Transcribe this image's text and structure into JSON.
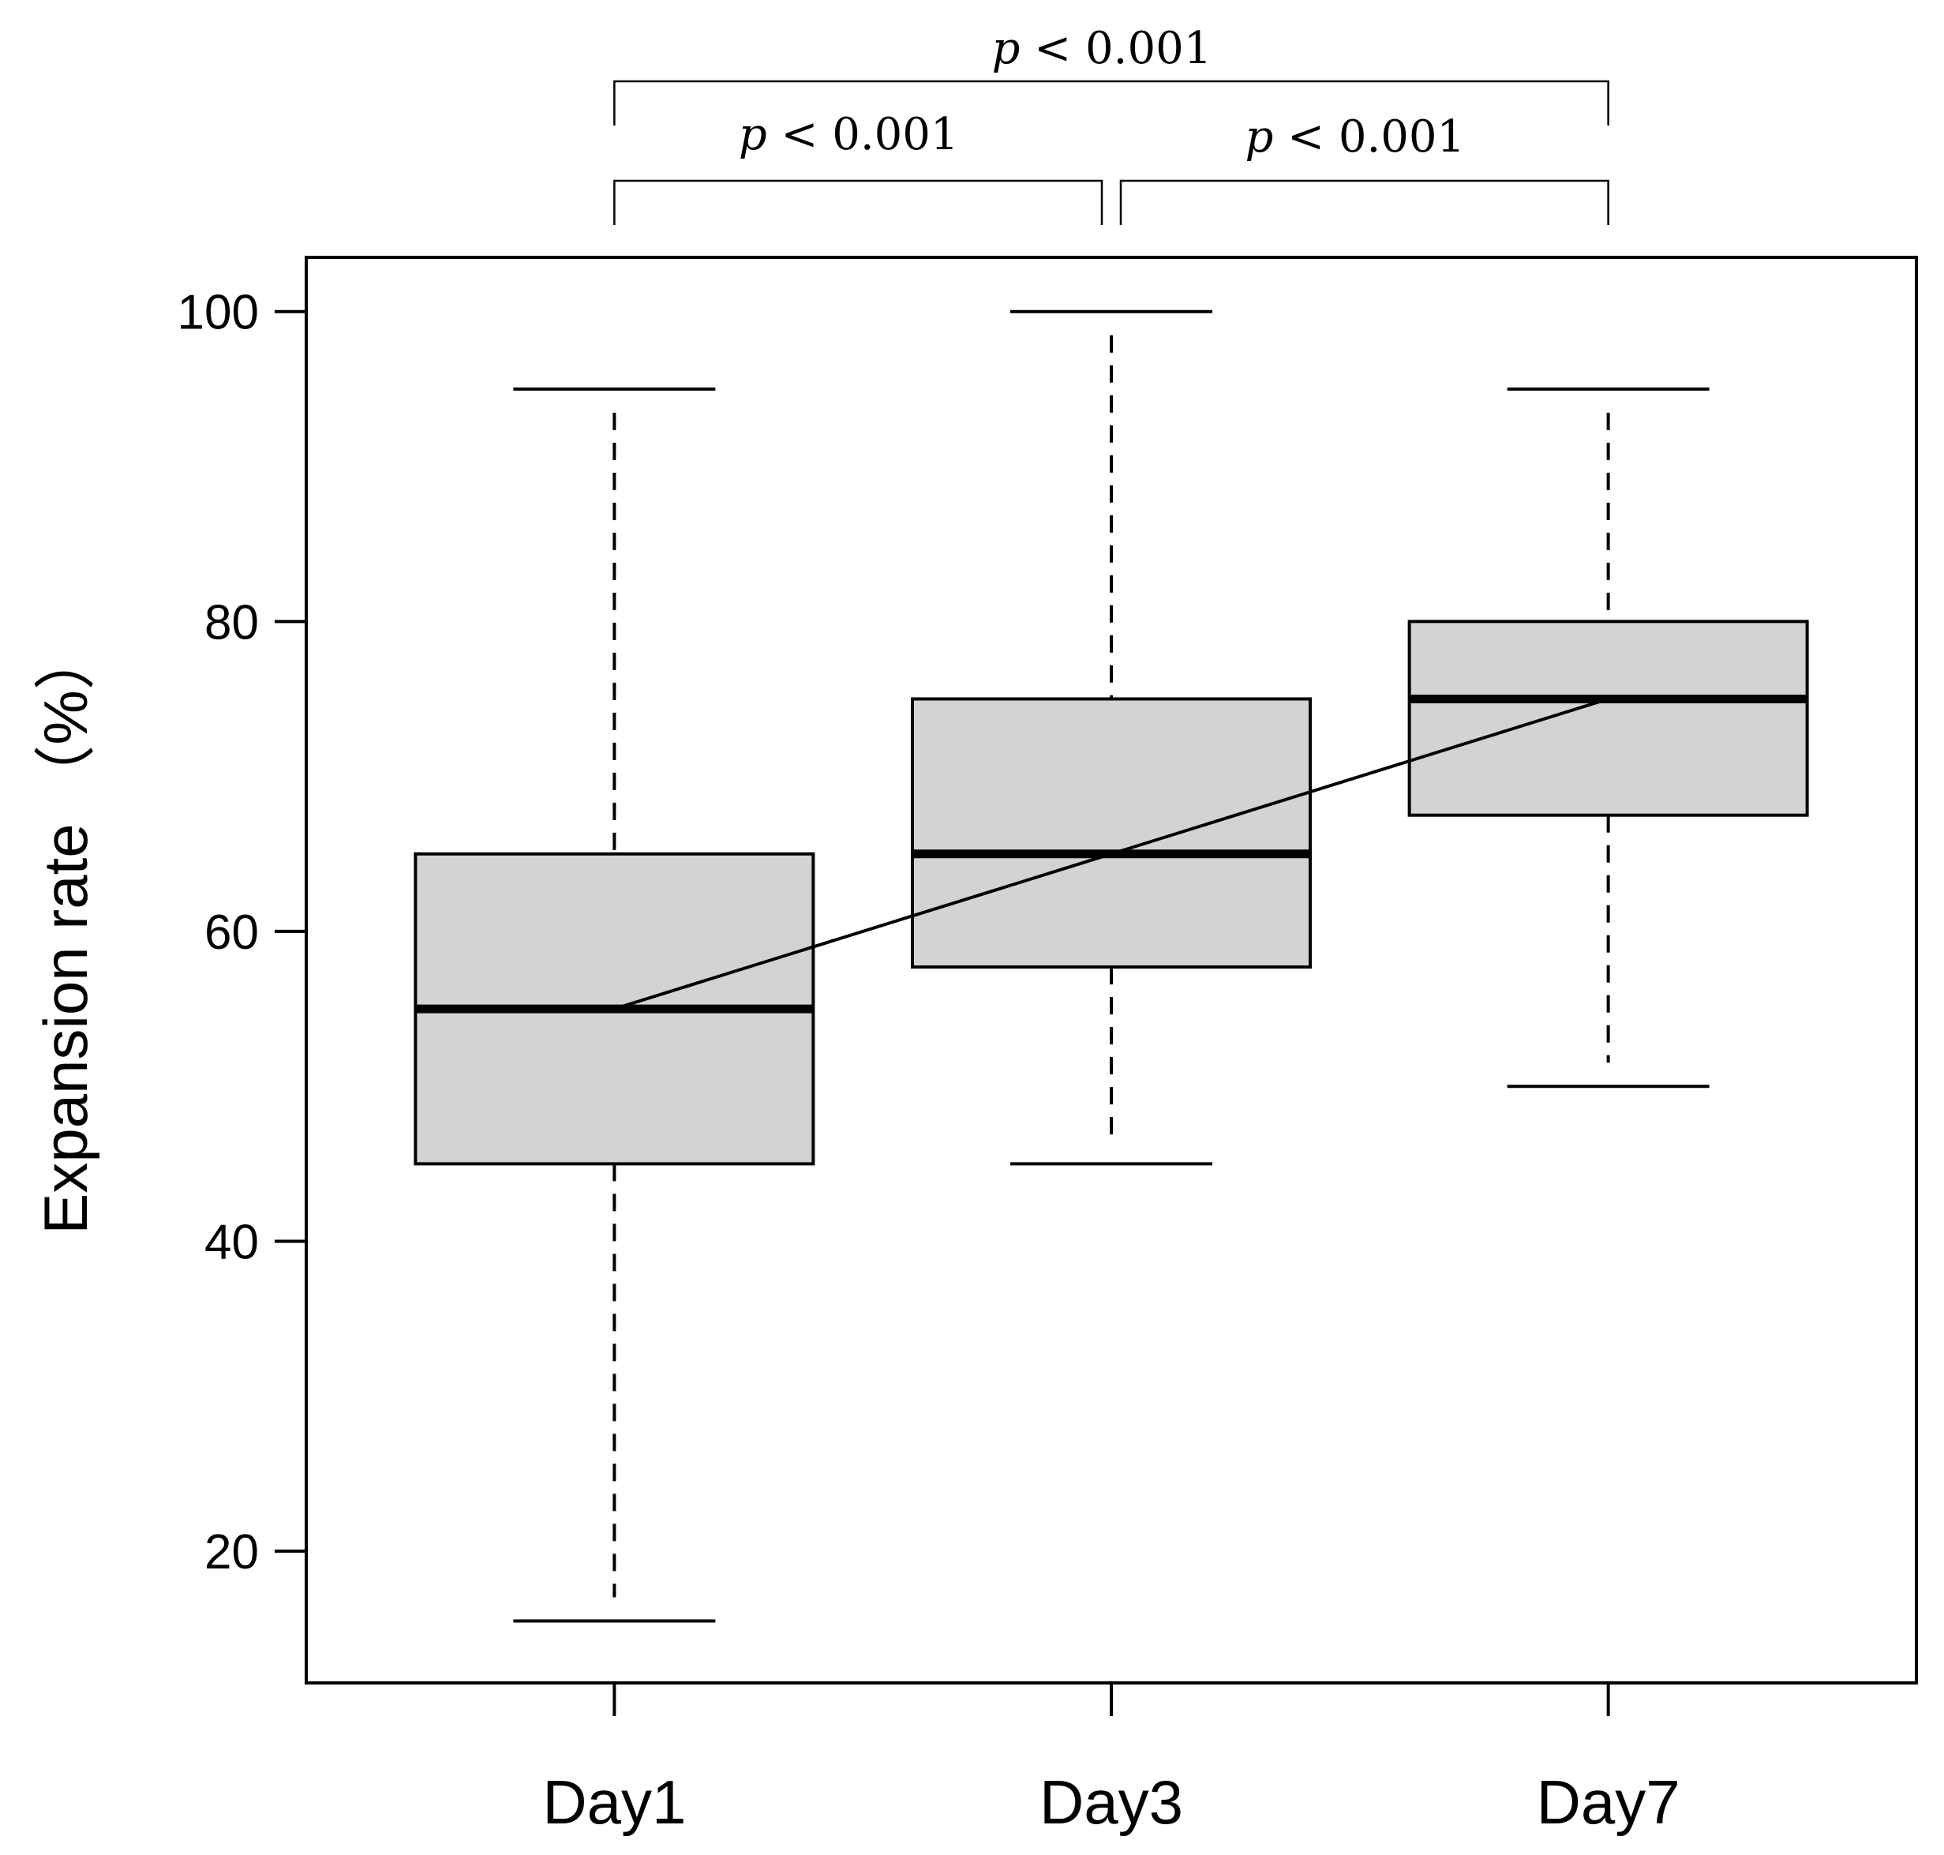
{
  "chart_data": {
    "type": "box",
    "title": "",
    "xlabel": "",
    "ylabel": "Expansion rate （%）",
    "ylim": [
      11.5,
      103.5
    ],
    "yticks": [
      20,
      40,
      60,
      80,
      100
    ],
    "categories": [
      "Day1",
      "Day3",
      "Day7"
    ],
    "boxes": [
      {
        "name": "Day1",
        "whisker_low": 15.5,
        "q1": 45,
        "median": 55,
        "q3": 65,
        "whisker_high": 95
      },
      {
        "name": "Day3",
        "whisker_low": 45,
        "q1": 57.7,
        "median": 65,
        "q3": 75,
        "whisker_high": 100
      },
      {
        "name": "Day7",
        "whisker_low": 50,
        "q1": 67.5,
        "median": 75,
        "q3": 80,
        "whisker_high": 95
      }
    ],
    "median_line": {
      "points": [
        55,
        65,
        75
      ]
    },
    "box_fill": "#d3d3d3",
    "line_color": "#000000",
    "comparisons": [
      {
        "groups": [
          "Day1",
          "Day3"
        ],
        "p_symbol": "p",
        "label": "< 0.001"
      },
      {
        "groups": [
          "Day3",
          "Day7"
        ],
        "p_symbol": "p",
        "label": "< 0.001"
      },
      {
        "groups": [
          "Day1",
          "Day7"
        ],
        "p_symbol": "p",
        "label": "< 0.001"
      }
    ]
  }
}
